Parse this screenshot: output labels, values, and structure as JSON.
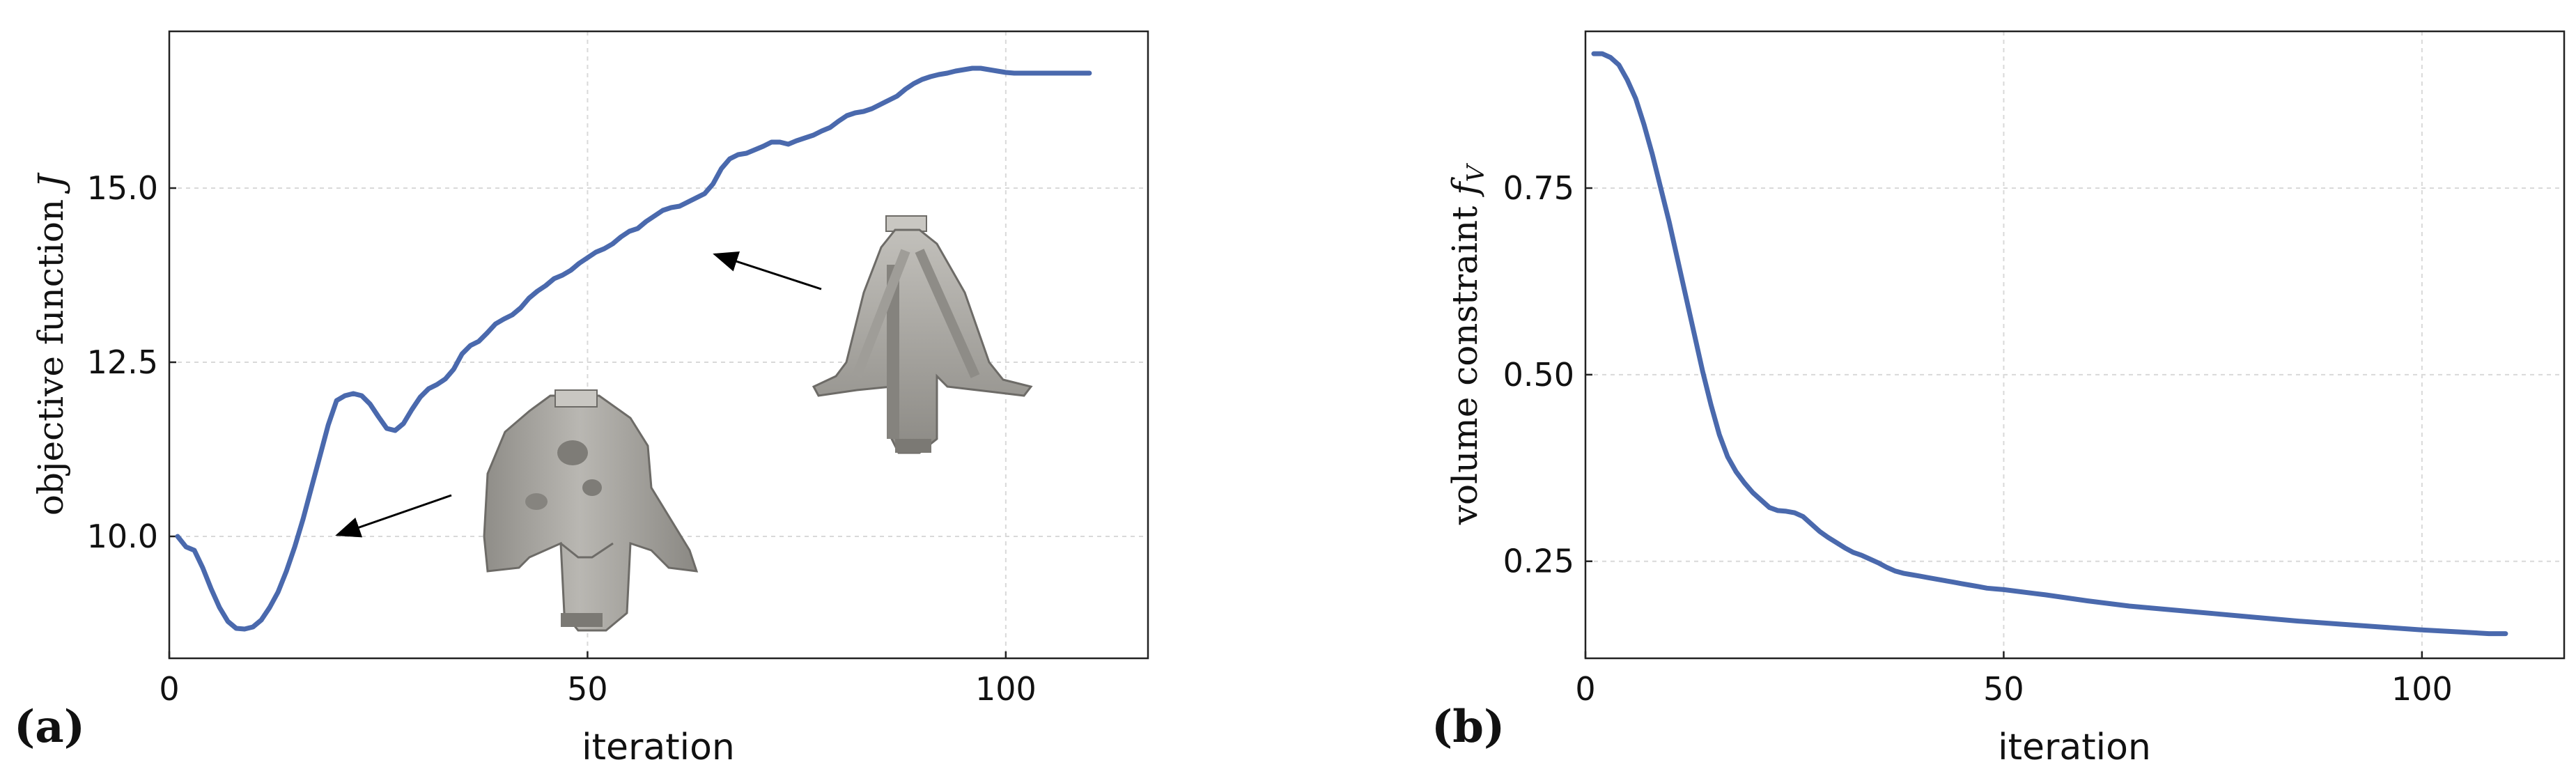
{
  "colors": {
    "series": "#4a69ad",
    "grid": "#d9d9d9",
    "axis": "#222222",
    "shape": "#a3a19c"
  },
  "chart_data": [
    {
      "type": "line",
      "panel_label": "(a)",
      "xlabel": "iteration",
      "ylabel": "objective function J",
      "xlim": [
        0,
        117
      ],
      "ylim": [
        8.25,
        17.25
      ],
      "xticks": [
        0,
        50,
        100
      ],
      "yticks": [
        10.0,
        12.5,
        15.0
      ],
      "xtick_labels": [
        "0",
        "50",
        "100"
      ],
      "ytick_labels": [
        "10.0",
        "12.5",
        "15.0"
      ],
      "grid": true,
      "insets": [
        "topology-shape-early-icon",
        "topology-shape-late-icon"
      ],
      "annotations": [
        {
          "type": "arrow",
          "from": [
            34,
            9.3
          ],
          "to": [
            20,
            10.0
          ]
        },
        {
          "type": "arrow",
          "from": [
            78.5,
            13.5
          ],
          "to": [
            65,
            14.0
          ]
        }
      ],
      "series": [
        {
          "x": [
            1,
            2,
            3,
            4,
            5,
            6,
            7,
            8,
            9,
            10,
            11,
            12,
            13,
            14,
            15,
            16,
            17,
            18,
            19,
            20,
            21,
            22,
            23,
            24,
            25,
            26,
            27,
            28,
            29,
            30,
            31,
            32,
            33,
            34,
            35,
            36,
            37,
            38,
            39,
            40,
            41,
            42,
            43,
            44,
            45,
            46,
            47,
            48,
            49,
            50,
            51,
            52,
            53,
            54,
            55,
            56,
            57,
            58,
            59,
            60,
            61,
            62,
            63,
            64,
            65,
            66,
            67,
            68,
            69,
            70,
            71,
            72,
            73,
            74,
            75,
            76,
            77,
            78,
            79,
            80,
            81,
            82,
            83,
            84,
            85,
            86,
            87,
            88,
            89,
            90,
            91,
            92,
            93,
            94,
            95,
            96,
            97,
            98,
            99,
            100,
            101,
            102,
            103,
            104,
            105,
            106,
            107,
            108,
            109,
            110
          ],
          "y": [
            10.0,
            9.85,
            9.8,
            9.55,
            9.25,
            8.98,
            8.78,
            8.68,
            8.67,
            8.7,
            8.8,
            8.98,
            9.2,
            9.5,
            9.85,
            10.25,
            10.7,
            11.15,
            11.6,
            11.95,
            12.02,
            12.05,
            12.02,
            11.9,
            11.72,
            11.55,
            11.52,
            11.62,
            11.82,
            12.0,
            12.12,
            12.18,
            12.26,
            12.4,
            12.62,
            12.74,
            12.8,
            12.92,
            13.05,
            13.12,
            13.18,
            13.28,
            13.42,
            13.52,
            13.6,
            13.7,
            13.75,
            13.82,
            13.92,
            14.0,
            14.08,
            14.13,
            14.2,
            14.3,
            14.38,
            14.42,
            14.52,
            14.6,
            14.68,
            14.72,
            14.74,
            14.8,
            14.86,
            14.92,
            15.06,
            15.28,
            15.42,
            15.48,
            15.5,
            15.55,
            15.6,
            15.66,
            15.66,
            15.63,
            15.68,
            15.72,
            15.76,
            15.82,
            15.87,
            15.96,
            16.04,
            16.08,
            16.1,
            16.14,
            16.2,
            16.26,
            16.32,
            16.42,
            16.5,
            16.56,
            16.6,
            16.63,
            16.65,
            16.68,
            16.7,
            16.72,
            16.72,
            16.7,
            16.68,
            16.66,
            16.65,
            16.65,
            16.65,
            16.65,
            16.65,
            16.65,
            16.65,
            16.65,
            16.65,
            16.65
          ]
        }
      ]
    },
    {
      "type": "line",
      "panel_label": "(b)",
      "xlabel": "iteration",
      "ylabel": "volume constraint f_V",
      "xlim": [
        0,
        117
      ],
      "ylim": [
        0.12,
        0.96
      ],
      "xticks": [
        0,
        50,
        100
      ],
      "yticks": [
        0.25,
        0.5,
        0.75
      ],
      "xtick_labels": [
        "0",
        "50",
        "100"
      ],
      "ytick_labels": [
        "0.25",
        "0.50",
        "0.75"
      ],
      "grid": true,
      "series": [
        {
          "x": [
            1,
            2,
            3,
            4,
            5,
            6,
            7,
            8,
            9,
            10,
            11,
            12,
            13,
            14,
            15,
            16,
            17,
            18,
            19,
            20,
            21,
            22,
            23,
            24,
            25,
            26,
            27,
            28,
            29,
            30,
            31,
            32,
            33,
            34,
            35,
            36,
            37,
            38,
            39,
            40,
            41,
            42,
            43,
            44,
            45,
            46,
            47,
            48,
            49,
            50,
            55,
            60,
            65,
            70,
            75,
            80,
            85,
            90,
            95,
            100,
            105,
            108,
            110
          ],
          "y": [
            0.93,
            0.93,
            0.925,
            0.915,
            0.895,
            0.87,
            0.835,
            0.795,
            0.75,
            0.705,
            0.655,
            0.605,
            0.555,
            0.505,
            0.46,
            0.42,
            0.39,
            0.37,
            0.355,
            0.342,
            0.332,
            0.322,
            0.318,
            0.317,
            0.315,
            0.31,
            0.3,
            0.29,
            0.282,
            0.275,
            0.268,
            0.262,
            0.258,
            0.253,
            0.248,
            0.242,
            0.237,
            0.234,
            0.232,
            0.23,
            0.228,
            0.226,
            0.224,
            0.222,
            0.22,
            0.218,
            0.216,
            0.214,
            0.213,
            0.212,
            0.205,
            0.197,
            0.19,
            0.185,
            0.18,
            0.175,
            0.17,
            0.166,
            0.162,
            0.158,
            0.155,
            0.153,
            0.153
          ]
        }
      ]
    }
  ]
}
